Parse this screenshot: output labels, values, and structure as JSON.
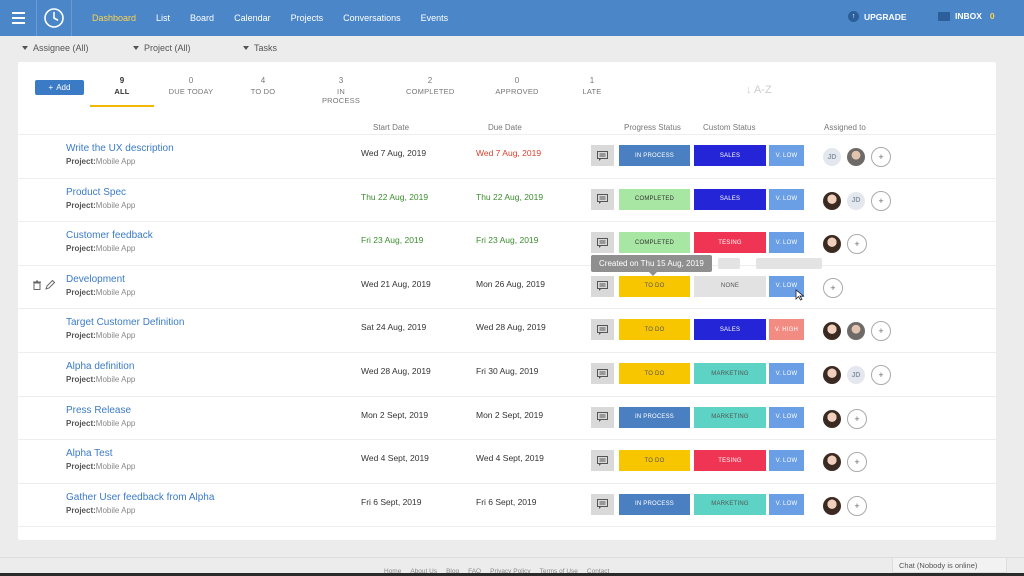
{
  "nav": {
    "items": [
      "Dashboard",
      "List",
      "Board",
      "Calendar",
      "Projects",
      "Conversations",
      "Events"
    ],
    "active": 0,
    "upgrade": "UPGRADE",
    "inbox": "INBOX",
    "inbox_count": "0"
  },
  "filters": {
    "assignee": "Assignee (All)",
    "project": "Project (All)",
    "tasks": "Tasks"
  },
  "toolbar": {
    "add_label": "Add",
    "sort_label": "↓ A-Z"
  },
  "tabs": [
    {
      "num": "9",
      "label": "ALL"
    },
    {
      "num": "0",
      "label": "DUE TODAY"
    },
    {
      "num": "4",
      "label": "TO DO"
    },
    {
      "num": "3",
      "label": "IN PROCESS"
    },
    {
      "num": "2",
      "label": "COMPLETED"
    },
    {
      "num": "0",
      "label": "APPROVED"
    },
    {
      "num": "1",
      "label": "LATE"
    }
  ],
  "columns": {
    "start": "Start Date",
    "due": "Due Date",
    "progress": "Progress Status",
    "custom": "Custom Status",
    "assigned": "Assigned to"
  },
  "project_label": "Project:",
  "colors": {
    "nav_bg": "#4a86c8",
    "active_tab": "#f1b800",
    "in_process": "#4a7fc1",
    "completed": "#a8e6a3",
    "to_do": "#f7c600",
    "sales": "#2525d8",
    "marketing": "#5cd3c4",
    "tesing": "#ef3454",
    "none": "#e2e2e2",
    "low": "#6a9fe6",
    "high": "#f28b82"
  },
  "tasks": [
    {
      "title": "Write the UX description",
      "project": "Mobile App",
      "start": "Wed 7 Aug, 2019",
      "due": "Wed 7 Aug, 2019",
      "start_color": "normal",
      "due_color": "red",
      "progress": "IN PROCESS",
      "custom": "SALES",
      "priority": "V. LOW",
      "assignees": [
        "JD",
        "photo2",
        "+"
      ]
    },
    {
      "title": "Product Spec",
      "project": "Mobile App",
      "start": "Thu 22 Aug, 2019",
      "due": "Thu 22 Aug, 2019",
      "start_color": "green",
      "due_color": "green",
      "progress": "COMPLETED",
      "custom": "SALES",
      "priority": "V. LOW",
      "assignees": [
        "photo1",
        "JD",
        "+"
      ]
    },
    {
      "title": "Customer feedback",
      "project": "Mobile App",
      "start": "Fri 23 Aug, 2019",
      "due": "Fri 23 Aug, 2019",
      "start_color": "green",
      "due_color": "green",
      "progress": "COMPLETED",
      "custom": "TESING",
      "priority": "V. LOW",
      "assignees": [
        "photo1",
        "+"
      ]
    },
    {
      "title": "Development",
      "project": "Mobile App",
      "start": "Wed 21 Aug, 2019",
      "due": "Mon 26 Aug, 2019",
      "start_color": "normal",
      "due_color": "normal",
      "progress": "TO DO",
      "custom": "NONE",
      "priority": "V. LOW",
      "assignees": [
        "+"
      ]
    },
    {
      "title": "Target Customer Definition",
      "project": "Mobile App",
      "start": "Sat 24 Aug, 2019",
      "due": "Wed 28 Aug, 2019",
      "start_color": "normal",
      "due_color": "normal",
      "progress": "TO DO",
      "custom": "SALES",
      "priority": "V. HIGH",
      "assignees": [
        "photo1",
        "photo2",
        "+"
      ]
    },
    {
      "title": "Alpha definition",
      "project": "Mobile App",
      "start": "Wed 28 Aug, 2019",
      "due": "Fri 30 Aug, 2019",
      "start_color": "normal",
      "due_color": "normal",
      "progress": "TO DO",
      "custom": "MARKETING",
      "priority": "V. LOW",
      "assignees": [
        "photo1",
        "JD",
        "+"
      ]
    },
    {
      "title": "Press Release",
      "project": "Mobile App",
      "start": "Mon 2 Sept, 2019",
      "due": "Mon 2 Sept, 2019",
      "start_color": "normal",
      "due_color": "normal",
      "progress": "IN PROCESS",
      "custom": "MARKETING",
      "priority": "V. LOW",
      "assignees": [
        "photo1",
        "+"
      ]
    },
    {
      "title": "Alpha Test",
      "project": "Mobile App",
      "start": "Wed 4 Sept, 2019",
      "due": "Wed 4 Sept, 2019",
      "start_color": "normal",
      "due_color": "normal",
      "progress": "TO DO",
      "custom": "TESING",
      "priority": "V. LOW",
      "assignees": [
        "photo1",
        "+"
      ]
    },
    {
      "title": "Gather User feedback from Alpha",
      "project": "Mobile App",
      "start": "Fri 6 Sept, 2019",
      "due": "Fri 6 Sept, 2019",
      "start_color": "normal",
      "due_color": "normal",
      "progress": "IN PROCESS",
      "custom": "MARKETING",
      "priority": "V. LOW",
      "assignees": [
        "photo1",
        "+"
      ]
    }
  ],
  "tooltip": "Created on Thu 15 Aug, 2019",
  "footer": [
    "Home",
    "About Us",
    "Blog",
    "FAQ",
    "Privacy Policy",
    "Terms of Use",
    "Contact"
  ],
  "chat": "Chat (Nobody is online)"
}
